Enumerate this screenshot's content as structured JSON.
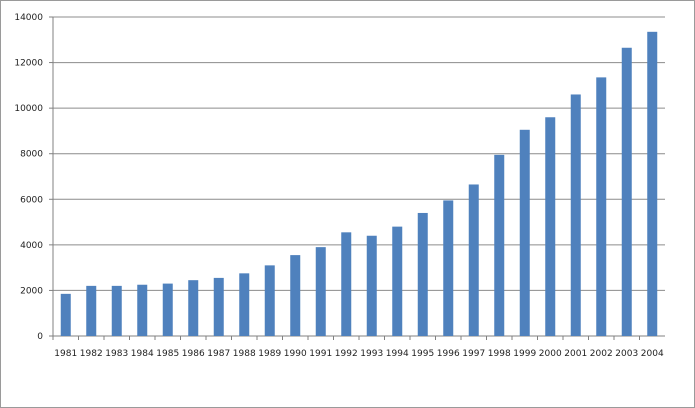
{
  "chart_data": {
    "type": "bar",
    "categories": [
      "1981",
      "1982",
      "1983",
      "1984",
      "1985",
      "1986",
      "1987",
      "1988",
      "1989",
      "1990",
      "1991",
      "1992",
      "1993",
      "1994",
      "1995",
      "1996",
      "1997",
      "1998",
      "1999",
      "2000",
      "2001",
      "2002",
      "2003",
      "2004"
    ],
    "values": [
      1850,
      2200,
      2200,
      2250,
      2300,
      2450,
      2550,
      2750,
      3100,
      3550,
      3900,
      4550,
      4400,
      4800,
      5400,
      5950,
      6650,
      7950,
      9050,
      9600,
      10600,
      11350,
      12650,
      13350
    ],
    "yticks": [
      "0",
      "2000",
      "4000",
      "6000",
      "8000",
      "10000",
      "12000",
      "14000"
    ],
    "ylim": [
      0,
      14000
    ],
    "grid": true,
    "legend": "none",
    "bar_color": "#4f81bd",
    "gridline_color": "#8c8c8c"
  }
}
